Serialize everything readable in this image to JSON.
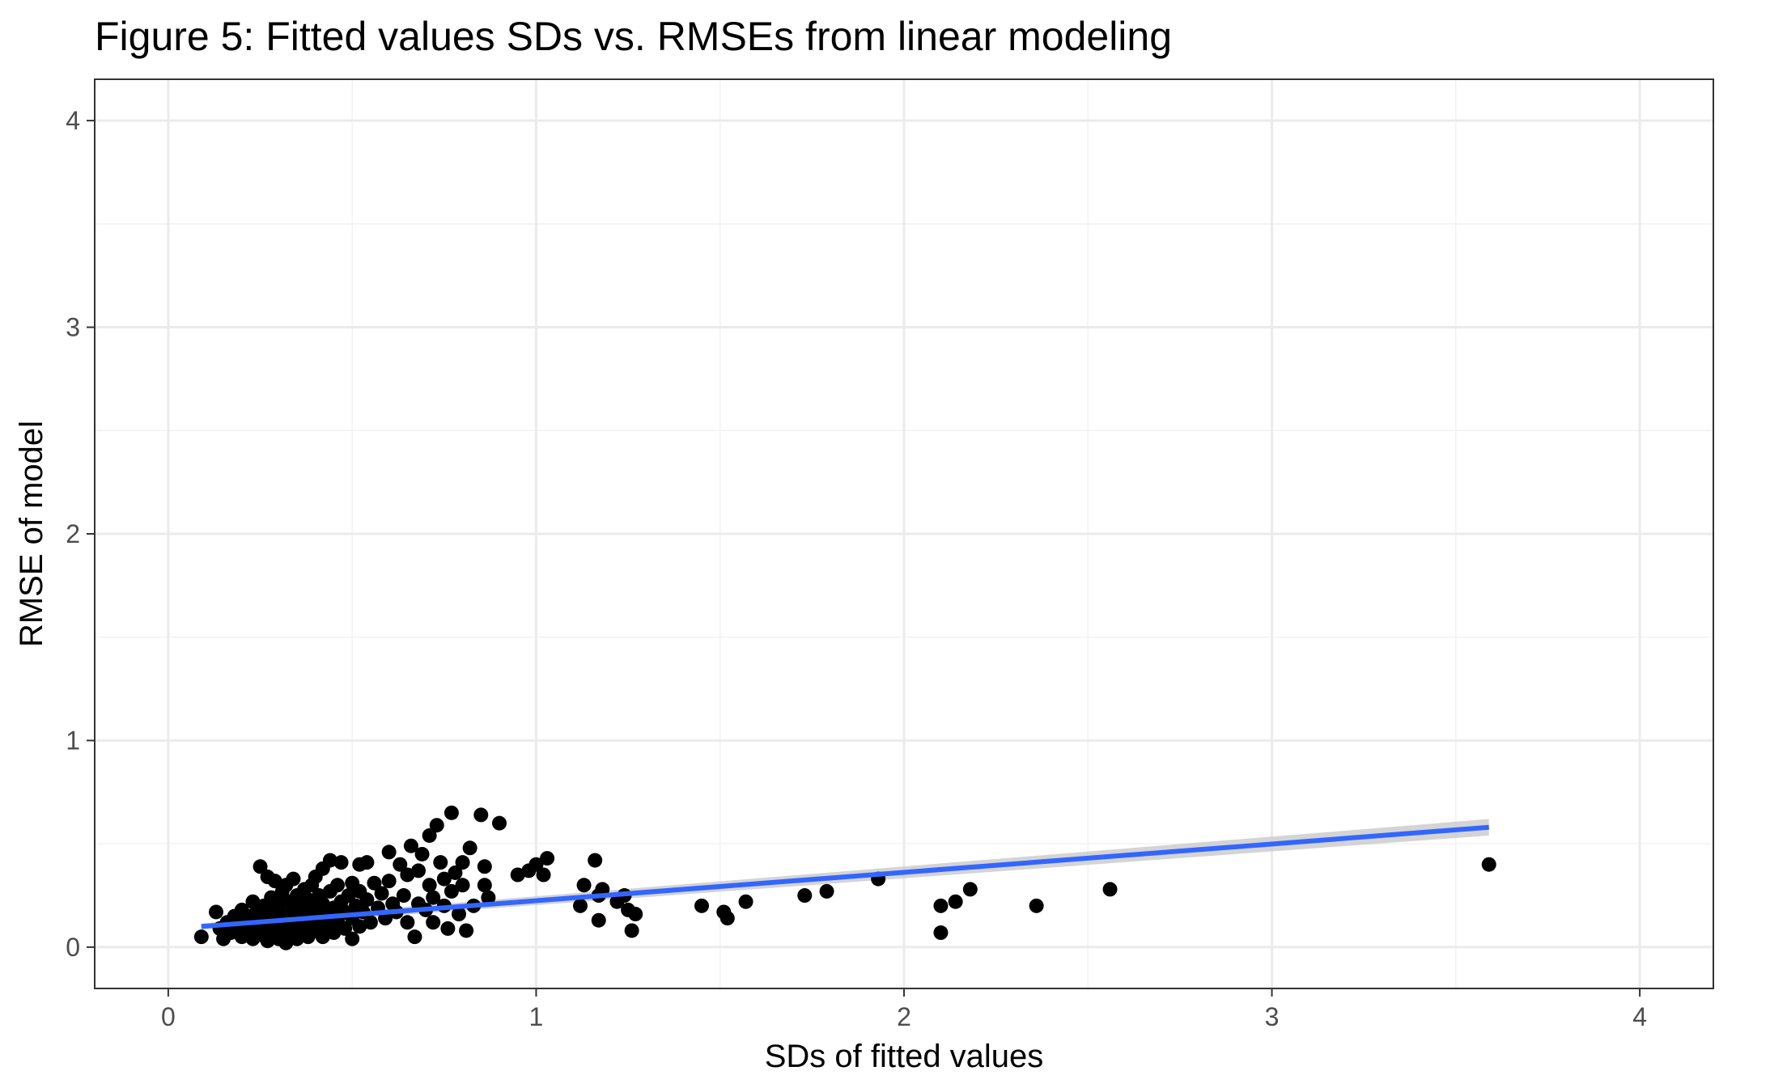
{
  "chart_data": {
    "type": "scatter",
    "title": "Figure 5: Fitted values SDs vs. RMSEs from linear modeling",
    "xlabel": "SDs of fitted values",
    "ylabel": "RMSE of model",
    "xlim": [
      -0.2,
      4.2
    ],
    "ylim": [
      -0.2,
      4.2
    ],
    "x_ticks": [
      0,
      1,
      2,
      3,
      4
    ],
    "y_ticks": [
      0,
      1,
      2,
      3,
      4
    ],
    "x_tick_labels": [
      "0",
      "1",
      "2",
      "3",
      "4"
    ],
    "y_tick_labels": [
      "0",
      "1",
      "2",
      "3",
      "4"
    ],
    "grid": true,
    "point_color": "#000000",
    "fit_color": "#3366ff",
    "ribbon_color": "#cccccc",
    "points": [
      [
        0.09,
        0.05
      ],
      [
        0.13,
        0.17
      ],
      [
        0.14,
        0.09
      ],
      [
        0.15,
        0.04
      ],
      [
        0.16,
        0.12
      ],
      [
        0.17,
        0.07
      ],
      [
        0.18,
        0.15
      ],
      [
        0.19,
        0.1
      ],
      [
        0.2,
        0.05
      ],
      [
        0.2,
        0.18
      ],
      [
        0.21,
        0.12
      ],
      [
        0.22,
        0.08
      ],
      [
        0.22,
        0.15
      ],
      [
        0.23,
        0.04
      ],
      [
        0.23,
        0.22
      ],
      [
        0.24,
        0.11
      ],
      [
        0.24,
        0.17
      ],
      [
        0.25,
        0.06
      ],
      [
        0.25,
        0.13
      ],
      [
        0.25,
        0.39
      ],
      [
        0.26,
        0.09
      ],
      [
        0.26,
        0.2
      ],
      [
        0.27,
        0.03
      ],
      [
        0.27,
        0.15
      ],
      [
        0.27,
        0.34
      ],
      [
        0.28,
        0.11
      ],
      [
        0.28,
        0.24
      ],
      [
        0.29,
        0.07
      ],
      [
        0.29,
        0.18
      ],
      [
        0.29,
        0.32
      ],
      [
        0.3,
        0.04
      ],
      [
        0.3,
        0.13
      ],
      [
        0.3,
        0.21
      ],
      [
        0.31,
        0.09
      ],
      [
        0.31,
        0.16
      ],
      [
        0.31,
        0.27
      ],
      [
        0.32,
        0.02
      ],
      [
        0.32,
        0.11
      ],
      [
        0.32,
        0.3
      ],
      [
        0.33,
        0.06
      ],
      [
        0.33,
        0.14
      ],
      [
        0.33,
        0.22
      ],
      [
        0.34,
        0.09
      ],
      [
        0.34,
        0.18
      ],
      [
        0.34,
        0.33
      ],
      [
        0.35,
        0.04
      ],
      [
        0.35,
        0.12
      ],
      [
        0.35,
        0.25
      ],
      [
        0.36,
        0.07
      ],
      [
        0.36,
        0.15
      ],
      [
        0.36,
        0.2
      ],
      [
        0.37,
        0.1
      ],
      [
        0.37,
        0.28
      ],
      [
        0.38,
        0.05
      ],
      [
        0.38,
        0.17
      ],
      [
        0.38,
        0.23
      ],
      [
        0.39,
        0.12
      ],
      [
        0.39,
        0.3
      ],
      [
        0.4,
        0.08
      ],
      [
        0.4,
        0.19
      ],
      [
        0.4,
        0.34
      ],
      [
        0.41,
        0.14
      ],
      [
        0.41,
        0.25
      ],
      [
        0.42,
        0.05
      ],
      [
        0.42,
        0.21
      ],
      [
        0.42,
        0.38
      ],
      [
        0.43,
        0.1
      ],
      [
        0.43,
        0.16
      ],
      [
        0.44,
        0.27
      ],
      [
        0.44,
        0.42
      ],
      [
        0.45,
        0.07
      ],
      [
        0.45,
        0.19
      ],
      [
        0.46,
        0.13
      ],
      [
        0.46,
        0.3
      ],
      [
        0.47,
        0.22
      ],
      [
        0.47,
        0.41
      ],
      [
        0.48,
        0.09
      ],
      [
        0.48,
        0.17
      ],
      [
        0.49,
        0.25
      ],
      [
        0.5,
        0.04
      ],
      [
        0.5,
        0.14
      ],
      [
        0.5,
        0.31
      ],
      [
        0.51,
        0.2
      ],
      [
        0.52,
        0.1
      ],
      [
        0.52,
        0.27
      ],
      [
        0.52,
        0.4
      ],
      [
        0.53,
        0.17
      ],
      [
        0.54,
        0.23
      ],
      [
        0.54,
        0.41
      ],
      [
        0.55,
        0.12
      ],
      [
        0.56,
        0.31
      ],
      [
        0.57,
        0.19
      ],
      [
        0.58,
        0.26
      ],
      [
        0.59,
        0.14
      ],
      [
        0.6,
        0.32
      ],
      [
        0.6,
        0.46
      ],
      [
        0.61,
        0.21
      ],
      [
        0.62,
        0.17
      ],
      [
        0.63,
        0.4
      ],
      [
        0.64,
        0.25
      ],
      [
        0.65,
        0.12
      ],
      [
        0.65,
        0.35
      ],
      [
        0.66,
        0.49
      ],
      [
        0.67,
        0.05
      ],
      [
        0.68,
        0.21
      ],
      [
        0.68,
        0.37
      ],
      [
        0.69,
        0.45
      ],
      [
        0.7,
        0.18
      ],
      [
        0.71,
        0.3
      ],
      [
        0.71,
        0.54
      ],
      [
        0.72,
        0.12
      ],
      [
        0.72,
        0.24
      ],
      [
        0.73,
        0.59
      ],
      [
        0.74,
        0.41
      ],
      [
        0.75,
        0.2
      ],
      [
        0.75,
        0.33
      ],
      [
        0.76,
        0.09
      ],
      [
        0.77,
        0.65
      ],
      [
        0.77,
        0.27
      ],
      [
        0.78,
        0.36
      ],
      [
        0.79,
        0.16
      ],
      [
        0.8,
        0.41
      ],
      [
        0.8,
        0.3
      ],
      [
        0.81,
        0.08
      ],
      [
        0.82,
        0.48
      ],
      [
        0.83,
        0.2
      ],
      [
        0.85,
        0.64
      ],
      [
        0.86,
        0.39
      ],
      [
        0.86,
        0.3
      ],
      [
        0.87,
        0.24
      ],
      [
        0.9,
        0.6
      ],
      [
        0.95,
        0.35
      ],
      [
        0.98,
        0.37
      ],
      [
        1.0,
        0.4
      ],
      [
        1.02,
        0.35
      ],
      [
        1.03,
        0.43
      ],
      [
        1.12,
        0.2
      ],
      [
        1.13,
        0.3
      ],
      [
        1.16,
        0.42
      ],
      [
        1.17,
        0.25
      ],
      [
        1.17,
        0.13
      ],
      [
        1.18,
        0.28
      ],
      [
        1.22,
        0.22
      ],
      [
        1.24,
        0.25
      ],
      [
        1.25,
        0.18
      ],
      [
        1.26,
        0.08
      ],
      [
        1.27,
        0.16
      ],
      [
        1.45,
        0.2
      ],
      [
        1.51,
        0.17
      ],
      [
        1.52,
        0.14
      ],
      [
        1.57,
        0.22
      ],
      [
        1.73,
        0.25
      ],
      [
        1.79,
        0.27
      ],
      [
        1.93,
        0.33
      ],
      [
        2.1,
        0.2
      ],
      [
        2.1,
        0.07
      ],
      [
        2.14,
        0.22
      ],
      [
        2.18,
        0.28
      ],
      [
        2.36,
        0.2
      ],
      [
        2.56,
        0.28
      ],
      [
        3.59,
        0.4
      ]
    ],
    "fit": {
      "x_start": 0.09,
      "x_end": 3.59,
      "y_start": 0.1,
      "y_end": 0.58,
      "ci_start": 0.015,
      "ci_end": 0.04
    }
  }
}
